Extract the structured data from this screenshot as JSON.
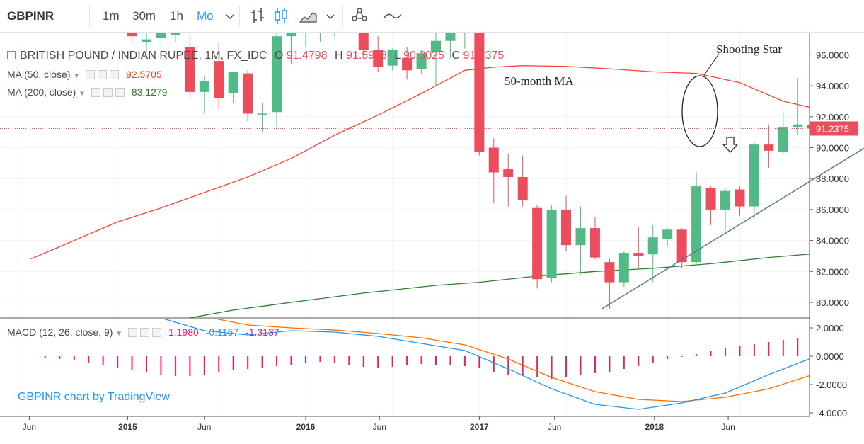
{
  "toolbar": {
    "symbol": "GBPINR",
    "intervals": [
      "1m",
      "30m",
      "1h",
      "Mo"
    ],
    "active_interval": "Mo",
    "icons": [
      "chevron-down-icon",
      "bar-style-icon",
      "candle-style-icon",
      "area-style-icon",
      "chevron-down-icon",
      "indicators-icon",
      "compare-icon"
    ]
  },
  "legend": {
    "title": "BRITISH POUND / INDIAN RUPEE, 1M, FX_IDC",
    "ohlc": {
      "o_label": "O",
      "o": "91.4798",
      "h_label": "H",
      "h": "91.5948",
      "l_label": "L",
      "l": "90.3025",
      "c_label": "C",
      "c": "91.2375"
    },
    "ma50_label": "MA (50, close)",
    "ma50_value": "92.5705",
    "ma200_label": "MA (200, close)",
    "ma200_value": "83.1279",
    "macd_label": "MACD (12, 26, close, 9)",
    "macd_hist": "1.1980",
    "macd_line": "-0.1157",
    "macd_signal": "-1.3137"
  },
  "annotations": {
    "shooting_star": "Shooting Star",
    "ma_label": "50-month MA",
    "watermark": "GBPINR chart by TradingView"
  },
  "colors": {
    "up": "#53b987",
    "down": "#eb4d5c",
    "ma50": "#f44336",
    "ma200": "#2e7d32",
    "macd": "#2196f3",
    "signal": "#ff6d00",
    "hist": "#e91e63",
    "trendline": "#5b7a8c",
    "price_tag": "#eb4d5c"
  },
  "chart_data": {
    "type": "candlestick",
    "title": "BRITISH POUND / INDIAN RUPEE, 1M, FX_IDC",
    "price_axis": {
      "ylim": [
        79,
        97
      ],
      "ticks": [
        "96.0000",
        "94.0000",
        "92.0000",
        "90.0000",
        "88.0000",
        "86.0000",
        "84.0000",
        "82.0000",
        "80.0000"
      ],
      "last_price": "91.2375"
    },
    "time_axis": {
      "labels": [
        "Jun",
        "2015",
        "Jun",
        "2016",
        "Jun",
        "2017",
        "Jun",
        "2018",
        "Jun"
      ]
    },
    "macd_axis": {
      "ylim": [
        -4.2,
        2.8
      ],
      "ticks": [
        "2.0000",
        "0.0000",
        "-2.0000",
        "-4.0000"
      ]
    },
    "candles": [
      {
        "t": 7,
        "o": 97.5,
        "h": 97.8,
        "l": 96.7,
        "c": 97.2
      },
      {
        "t": 8,
        "o": 96.8,
        "h": 97.6,
        "l": 96.2,
        "c": 97.0
      },
      {
        "t": 9,
        "o": 97.1,
        "h": 97.8,
        "l": 96.4,
        "c": 97.4
      },
      {
        "t": 10,
        "o": 97.3,
        "h": 97.9,
        "l": 96.8,
        "c": 97.6
      },
      {
        "t": 11,
        "o": 96.5,
        "h": 97.3,
        "l": 93.2,
        "c": 93.6
      },
      {
        "t": 12,
        "o": 93.6,
        "h": 94.6,
        "l": 92.2,
        "c": 94.3
      },
      {
        "t": 13,
        "o": 95.6,
        "h": 96.8,
        "l": 92.5,
        "c": 93.2
      },
      {
        "t": 14,
        "o": 93.5,
        "h": 94.8,
        "l": 92.9,
        "c": 94.9
      },
      {
        "t": 15,
        "o": 94.8,
        "h": 95.0,
        "l": 91.7,
        "c": 92.2
      },
      {
        "t": 16,
        "o": 92.2,
        "h": 92.9,
        "l": 91.0,
        "c": 92.2
      },
      {
        "t": 17,
        "o": 92.3,
        "h": 97.5,
        "l": 91.3,
        "c": 97.2
      },
      {
        "t": 18,
        "o": 97.2,
        "h": 98.0,
        "l": 95.4,
        "c": 97.8
      },
      {
        "t": 19,
        "o": 97.8,
        "h": 98.2,
        "l": 96.5,
        "c": 98.0
      },
      {
        "t": 20,
        "o": 98.0,
        "h": 98.6,
        "l": 96.8,
        "c": 98.2
      },
      {
        "t": 21,
        "o": 98.2,
        "h": 98.9,
        "l": 97.2,
        "c": 98.5
      },
      {
        "t": 22,
        "o": 98.5,
        "h": 99.0,
        "l": 97.5,
        "c": 98.2
      },
      {
        "t": 23,
        "o": 97.8,
        "h": 98.5,
        "l": 95.8,
        "c": 96.3
      },
      {
        "t": 24,
        "o": 96.3,
        "h": 97.2,
        "l": 94.9,
        "c": 95.2
      },
      {
        "t": 25,
        "o": 95.3,
        "h": 96.4,
        "l": 95.0,
        "c": 96.3
      },
      {
        "t": 26,
        "o": 95.8,
        "h": 96.5,
        "l": 94.4,
        "c": 95.0
      },
      {
        "t": 27,
        "o": 95.1,
        "h": 96.3,
        "l": 94.8,
        "c": 96.1
      },
      {
        "t": 28,
        "o": 96.2,
        "h": 97.8,
        "l": 94.0,
        "c": 96.9
      },
      {
        "t": 29,
        "o": 96.9,
        "h": 98.0,
        "l": 95.8,
        "c": 97.6
      },
      {
        "t": 30,
        "o": 97.6,
        "h": 98.6,
        "l": 96.4,
        "c": 97.8
      },
      {
        "t": 31,
        "o": 97.5,
        "h": 97.8,
        "l": 89.5,
        "c": 89.7
      },
      {
        "t": 32,
        "o": 90.0,
        "h": 90.6,
        "l": 86.4,
        "c": 88.4
      },
      {
        "t": 33,
        "o": 88.6,
        "h": 89.6,
        "l": 86.2,
        "c": 88.1
      },
      {
        "t": 34,
        "o": 88.1,
        "h": 89.5,
        "l": 86.2,
        "c": 86.6
      },
      {
        "t": 35,
        "o": 86.1,
        "h": 86.3,
        "l": 80.9,
        "c": 81.5
      },
      {
        "t": 36,
        "o": 81.6,
        "h": 86.3,
        "l": 81.3,
        "c": 86.0
      },
      {
        "t": 37,
        "o": 86.0,
        "h": 86.9,
        "l": 83.3,
        "c": 83.7
      },
      {
        "t": 38,
        "o": 83.7,
        "h": 86.2,
        "l": 81.8,
        "c": 84.8
      },
      {
        "t": 39,
        "o": 84.8,
        "h": 85.5,
        "l": 82.8,
        "c": 82.9
      },
      {
        "t": 40,
        "o": 82.6,
        "h": 82.8,
        "l": 79.6,
        "c": 81.3
      },
      {
        "t": 41,
        "o": 81.3,
        "h": 83.3,
        "l": 81.0,
        "c": 83.2
      },
      {
        "t": 42,
        "o": 83.2,
        "h": 84.9,
        "l": 82.2,
        "c": 83.0
      },
      {
        "t": 43,
        "o": 83.1,
        "h": 85.0,
        "l": 81.3,
        "c": 84.2
      },
      {
        "t": 44,
        "o": 84.1,
        "h": 84.8,
        "l": 83.6,
        "c": 84.7
      },
      {
        "t": 45,
        "o": 84.7,
        "h": 84.8,
        "l": 82.2,
        "c": 82.6
      },
      {
        "t": 46,
        "o": 82.6,
        "h": 88.4,
        "l": 82.5,
        "c": 87.5
      },
      {
        "t": 47,
        "o": 87.4,
        "h": 87.5,
        "l": 85.0,
        "c": 86.0
      },
      {
        "t": 48,
        "o": 86.0,
        "h": 87.4,
        "l": 84.6,
        "c": 87.2
      },
      {
        "t": 49,
        "o": 87.3,
        "h": 87.5,
        "l": 85.6,
        "c": 86.2
      },
      {
        "t": 50,
        "o": 86.2,
        "h": 90.4,
        "l": 85.4,
        "c": 90.2
      },
      {
        "t": 51,
        "o": 90.2,
        "h": 91.5,
        "l": 88.7,
        "c": 89.8
      },
      {
        "t": 52,
        "o": 89.7,
        "h": 92.3,
        "l": 89.6,
        "c": 91.3
      },
      {
        "t": 53,
        "o": 91.3,
        "h": 94.5,
        "l": 90.8,
        "c": 91.5
      },
      {
        "t": 54,
        "o": 91.48,
        "h": 91.59,
        "l": 90.3,
        "c": 91.24
      }
    ],
    "ma50": [
      {
        "t": 0,
        "v": 82.8
      },
      {
        "t": 3,
        "v": 84.0
      },
      {
        "t": 6,
        "v": 85.2
      },
      {
        "t": 9,
        "v": 86.1
      },
      {
        "t": 12,
        "v": 87.1
      },
      {
        "t": 15,
        "v": 88.1
      },
      {
        "t": 18,
        "v": 89.3
      },
      {
        "t": 21,
        "v": 90.8
      },
      {
        "t": 24,
        "v": 92.1
      },
      {
        "t": 27,
        "v": 93.5
      },
      {
        "t": 30,
        "v": 95.0
      },
      {
        "t": 32,
        "v": 95.2
      },
      {
        "t": 34,
        "v": 95.3
      },
      {
        "t": 37,
        "v": 95.25
      },
      {
        "t": 40,
        "v": 95.1
      },
      {
        "t": 43,
        "v": 94.9
      },
      {
        "t": 46,
        "v": 94.8
      },
      {
        "t": 49,
        "v": 94.2
      },
      {
        "t": 52,
        "v": 93.0
      },
      {
        "t": 54,
        "v": 92.57
      }
    ],
    "ma200": [
      {
        "t": 11,
        "v": 79.0
      },
      {
        "t": 14,
        "v": 79.5
      },
      {
        "t": 18,
        "v": 80.0
      },
      {
        "t": 23,
        "v": 80.6
      },
      {
        "t": 28,
        "v": 81.1
      },
      {
        "t": 31,
        "v": 81.3
      },
      {
        "t": 35,
        "v": 81.7
      },
      {
        "t": 39,
        "v": 82.0
      },
      {
        "t": 43,
        "v": 82.2
      },
      {
        "t": 47,
        "v": 82.5
      },
      {
        "t": 51,
        "v": 82.9
      },
      {
        "t": 54,
        "v": 83.13
      }
    ],
    "trendline": [
      {
        "t": 39.5,
        "v": 79.6
      },
      {
        "t": 58,
        "v": 90.2
      }
    ],
    "macd_line": [
      {
        "t": 9,
        "v": 2.7
      },
      {
        "t": 12,
        "v": 1.8
      },
      {
        "t": 15,
        "v": 1.5
      },
      {
        "t": 18,
        "v": 1.8
      },
      {
        "t": 21,
        "v": 1.7
      },
      {
        "t": 24,
        "v": 1.4
      },
      {
        "t": 27,
        "v": 0.9
      },
      {
        "t": 30,
        "v": 0.4
      },
      {
        "t": 33,
        "v": -0.9
      },
      {
        "t": 36,
        "v": -2.3
      },
      {
        "t": 39,
        "v": -3.4
      },
      {
        "t": 42,
        "v": -3.75
      },
      {
        "t": 45,
        "v": -3.3
      },
      {
        "t": 48,
        "v": -2.6
      },
      {
        "t": 51,
        "v": -1.3
      },
      {
        "t": 54,
        "v": -0.12
      }
    ],
    "signal_line": [
      {
        "t": 12,
        "v": 2.8
      },
      {
        "t": 15,
        "v": 2.2
      },
      {
        "t": 18,
        "v": 2.0
      },
      {
        "t": 21,
        "v": 1.85
      },
      {
        "t": 24,
        "v": 1.6
      },
      {
        "t": 27,
        "v": 1.3
      },
      {
        "t": 30,
        "v": 0.8
      },
      {
        "t": 33,
        "v": -0.2
      },
      {
        "t": 36,
        "v": -1.5
      },
      {
        "t": 39,
        "v": -2.5
      },
      {
        "t": 42,
        "v": -3.05
      },
      {
        "t": 45,
        "v": -3.2
      },
      {
        "t": 48,
        "v": -2.9
      },
      {
        "t": 51,
        "v": -2.3
      },
      {
        "t": 54,
        "v": -1.31
      }
    ],
    "macd_hist": [
      {
        "t": 1,
        "v": -0.15
      },
      {
        "t": 2,
        "v": -0.2
      },
      {
        "t": 3,
        "v": -0.3
      },
      {
        "t": 4,
        "v": -0.5
      },
      {
        "t": 5,
        "v": -0.65
      },
      {
        "t": 6,
        "v": -0.8
      },
      {
        "t": 7,
        "v": -0.95
      },
      {
        "t": 8,
        "v": -1.1
      },
      {
        "t": 9,
        "v": -1.3
      },
      {
        "t": 10,
        "v": -1.4
      },
      {
        "t": 11,
        "v": -1.4
      },
      {
        "t": 12,
        "v": -1.3
      },
      {
        "t": 13,
        "v": -1.15
      },
      {
        "t": 14,
        "v": -1.0
      },
      {
        "t": 15,
        "v": -0.9
      },
      {
        "t": 16,
        "v": -0.85
      },
      {
        "t": 17,
        "v": -0.7
      },
      {
        "t": 18,
        "v": -0.6
      },
      {
        "t": 19,
        "v": -0.5
      },
      {
        "t": 20,
        "v": -0.4
      },
      {
        "t": 21,
        "v": -0.5
      },
      {
        "t": 22,
        "v": -0.6
      },
      {
        "t": 23,
        "v": -0.75
      },
      {
        "t": 24,
        "v": -0.8
      },
      {
        "t": 25,
        "v": -0.75
      },
      {
        "t": 26,
        "v": -0.6
      },
      {
        "t": 27,
        "v": -0.55
      },
      {
        "t": 28,
        "v": -0.6
      },
      {
        "t": 29,
        "v": -0.65
      },
      {
        "t": 30,
        "v": -0.7
      },
      {
        "t": 31,
        "v": -0.85
      },
      {
        "t": 32,
        "v": -1.15
      },
      {
        "t": 33,
        "v": -1.3
      },
      {
        "t": 34,
        "v": -1.4
      },
      {
        "t": 35,
        "v": -1.5
      },
      {
        "t": 36,
        "v": -1.6
      },
      {
        "t": 37,
        "v": -1.45
      },
      {
        "t": 38,
        "v": -1.3
      },
      {
        "t": 39,
        "v": -1.2
      },
      {
        "t": 40,
        "v": -1.1
      },
      {
        "t": 41,
        "v": -0.9
      },
      {
        "t": 42,
        "v": -0.7
      },
      {
        "t": 43,
        "v": -0.45
      },
      {
        "t": 44,
        "v": -0.2
      },
      {
        "t": 45,
        "v": -0.05
      },
      {
        "t": 46,
        "v": 0.15
      },
      {
        "t": 47,
        "v": 0.35
      },
      {
        "t": 48,
        "v": 0.55
      },
      {
        "t": 49,
        "v": 0.7
      },
      {
        "t": 50,
        "v": 0.85
      },
      {
        "t": 51,
        "v": 1.0
      },
      {
        "t": 52,
        "v": 1.15
      },
      {
        "t": 53,
        "v": 1.25
      },
      {
        "t": 54,
        "v": 1.2
      }
    ]
  }
}
